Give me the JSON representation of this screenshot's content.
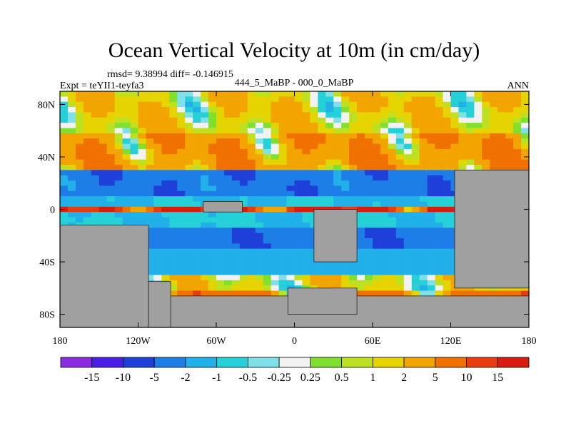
{
  "chart_data": {
    "type": "heatmap",
    "title": "Ocean Vertical Velocity at 10m (in cm/day)",
    "stats_line": "rmsd= 9.38994 diff= -0.146915",
    "left_label": "Expt = teYII1-teyfa3",
    "center_label": "444_5_MaBP - 000_0_MaBP",
    "right_label": "ANN",
    "x_axis": {
      "range": [
        -180,
        180
      ],
      "ticks": [
        {
          "value": -180,
          "label": "180"
        },
        {
          "value": -120,
          "label": "120W"
        },
        {
          "value": -60,
          "label": "60W"
        },
        {
          "value": 0,
          "label": "0"
        },
        {
          "value": 60,
          "label": "60E"
        },
        {
          "value": 120,
          "label": "120E"
        },
        {
          "value": 180,
          "label": "180"
        }
      ]
    },
    "y_axis": {
      "range": [
        -90,
        90
      ],
      "ticks": [
        {
          "value": 80,
          "label": "80N"
        },
        {
          "value": 40,
          "label": "40N"
        },
        {
          "value": 0,
          "label": "0"
        },
        {
          "value": -40,
          "label": "40S"
        },
        {
          "value": -80,
          "label": "80S"
        }
      ]
    },
    "colorbar": {
      "levels": [
        "-15",
        "-10",
        "-5",
        "-2",
        "-1",
        "-0.5",
        "-0.25",
        "0.25",
        "0.5",
        "1",
        "2",
        "5",
        "10",
        "15"
      ],
      "colors": [
        "#8a2be2",
        "#4b1ee6",
        "#1e3fd8",
        "#1e7ee8",
        "#21b0e8",
        "#25d0d8",
        "#7fe0e8",
        "#f2f2f2",
        "#7fe030",
        "#bde020",
        "#e6d400",
        "#f2a400",
        "#f07000",
        "#e83c10",
        "#d81c10"
      ],
      "label_anchors": "boundaries"
    },
    "land_color": "#a0a0a0",
    "land_regions": [
      {
        "name": "antarctica",
        "lon": [
          -180,
          180
        ],
        "lat": [
          -90,
          -66
        ]
      },
      {
        "name": "south-america",
        "lon": [
          -180,
          -112
        ],
        "lat": [
          -90,
          -12
        ]
      },
      {
        "name": "south-america-east",
        "lon": [
          -112,
          -95
        ],
        "lat": [
          -90,
          -55
        ]
      },
      {
        "name": "east-africa-asia",
        "lon": [
          123,
          180
        ],
        "lat": [
          -60,
          30
        ]
      },
      {
        "name": "central-land",
        "lon": [
          15,
          48
        ],
        "lat": [
          -40,
          0
        ]
      },
      {
        "name": "west-land",
        "lon": [
          -70,
          -40
        ],
        "lat": [
          -2,
          6
        ]
      },
      {
        "name": "south-land",
        "lon": [
          -5,
          48
        ],
        "lat": [
          -80,
          -60
        ]
      }
    ],
    "value_bands": [
      {
        "lat": [
          60,
          90
        ],
        "base": 1.5
      },
      {
        "lat": [
          30,
          60
        ],
        "base": 4
      },
      {
        "lat": [
          12,
          30
        ],
        "base": -4
      },
      {
        "lat": [
          3,
          12
        ],
        "base": -1
      },
      {
        "lat": [
          -3,
          3
        ],
        "base": 15
      },
      {
        "lat": [
          -12,
          -3
        ],
        "base": -1
      },
      {
        "lat": [
          -30,
          -12
        ],
        "base": -4
      },
      {
        "lat": [
          -50,
          -30
        ],
        "base": -1.5
      },
      {
        "lat": [
          -60,
          -50
        ],
        "base": 1
      },
      {
        "lat": [
          -66,
          -60
        ],
        "base": 6
      }
    ]
  }
}
